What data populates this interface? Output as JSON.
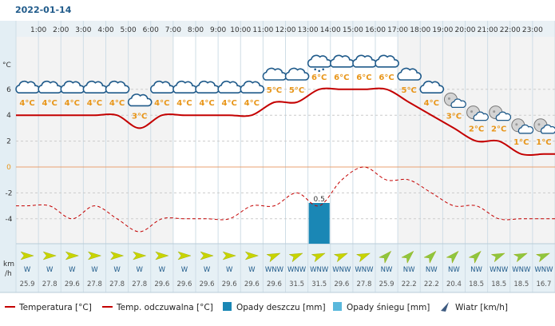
{
  "date": "2022-01-14",
  "units": {
    "temp": "°C",
    "wind_line1": "km",
    "wind_line2": "/h"
  },
  "legend": [
    {
      "label": "Temperatura [°C]",
      "color": "#c40000",
      "style": "solid"
    },
    {
      "label": "Temp. odczuwalna [°C]",
      "color": "#c40000",
      "style": "dashed"
    },
    {
      "label": "Opady deszczu [mm]",
      "color": "#1a87b5",
      "style": "box"
    },
    {
      "label": "Opady śniegu [mm]",
      "color": "#5ab8dc",
      "style": "box"
    },
    {
      "label": "Wiatr [km/h]",
      "color": "#3d5a80",
      "style": "arrow"
    }
  ],
  "colors": {
    "temp_line": "#c40000",
    "zero_line": "#e8a070",
    "temp_label": "#e8961a",
    "rain_bar": "#1a87b5",
    "wind_arrow_strong": "#c8d400",
    "wind_arrow_light": "#8ec63f"
  },
  "chart_data": {
    "type": "line",
    "y_unit": "°C",
    "y_ticks": [
      6,
      4,
      2,
      0,
      -2,
      -4
    ],
    "ylim": [
      -5.8,
      8.6
    ],
    "hours": [
      "1:00",
      "2:00",
      "3:00",
      "4:00",
      "5:00",
      "6:00",
      "7:00",
      "8:00",
      "9:00",
      "10:00",
      "11:00",
      "12:00",
      "13:00",
      "14:00",
      "15:00",
      "16:00",
      "17:00",
      "18:00",
      "19:00",
      "20:00",
      "21:00",
      "22:00",
      "23:00",
      ""
    ],
    "temperature": [
      4,
      4,
      4,
      4,
      4,
      3,
      4,
      4,
      4,
      4,
      4,
      5,
      5,
      6,
      6,
      6,
      6,
      5,
      4,
      3,
      2,
      2,
      1,
      1
    ],
    "temperature_labels": [
      "4°C",
      "4°C",
      "4°C",
      "4°C",
      "4°C",
      "3°C",
      "4°C",
      "4°C",
      "4°C",
      "4°C",
      "4°C",
      "5°C",
      "5°C",
      "6°C",
      "6°C",
      "6°C",
      "6°C",
      "5°C",
      "4°C",
      "3°C",
      "2°C",
      "2°C",
      "1°C",
      "1°C"
    ],
    "feels_like": [
      -3,
      -3,
      -4,
      -3,
      -4,
      -5,
      -4,
      -4,
      -4,
      -4,
      -3,
      -3,
      -2,
      -3,
      -1,
      0,
      -1,
      -1,
      -2,
      -3,
      -3,
      -4,
      -4,
      -4
    ],
    "rain_mm": [
      0,
      0,
      0,
      0,
      0,
      0,
      0,
      0,
      0,
      0,
      0,
      0,
      0,
      0.5,
      0,
      0,
      0,
      0,
      0,
      0,
      0,
      0,
      0,
      0
    ],
    "rain_labels": [
      "",
      "",
      "",
      "",
      "",
      "",
      "",
      "",
      "",
      "",
      "",
      "",
      "",
      "0.5",
      "",
      "",
      "",
      "",
      "",
      "",
      "",
      "",
      "",
      ""
    ],
    "icons": [
      "cloud-icon",
      "cloud-icon",
      "cloud-icon",
      "cloud-icon",
      "cloud-icon",
      "cloud-icon",
      "cloud-icon",
      "cloud-icon",
      "cloud-icon",
      "cloud-icon",
      "cloud-icon",
      "cloud-icon",
      "cloud-icon",
      "rain-cloud-icon",
      "cloud-icon",
      "cloud-icon",
      "cloud-icon",
      "cloud-icon",
      "cloud-icon",
      "moon-cloud-icon",
      "moon-cloud-icon",
      "moon-cloud-icon",
      "moon-cloud-icon",
      "moon-cloud-icon"
    ],
    "wind_dir": [
      "W",
      "W",
      "W",
      "W",
      "W",
      "W",
      "W",
      "W",
      "W",
      "W",
      "W",
      "WNW",
      "WNW",
      "WNW",
      "WNW",
      "WNW",
      "NW",
      "NW",
      "NW",
      "NW",
      "NW",
      "WNW",
      "WNW",
      "WNW"
    ],
    "wind_speed": [
      "25.9",
      "27.8",
      "29.6",
      "27.8",
      "27.8",
      "27.8",
      "29.6",
      "29.6",
      "29.6",
      "29.6",
      "29.6",
      "29.6",
      "31.5",
      "31.5",
      "29.6",
      "27.8",
      "25.9",
      "22.2",
      "22.2",
      "20.4",
      "18.5",
      "18.5",
      "18.5",
      "16.7"
    ],
    "wind_strength": [
      "strong",
      "strong",
      "strong",
      "strong",
      "strong",
      "strong",
      "strong",
      "strong",
      "strong",
      "strong",
      "strong",
      "strong",
      "strong",
      "strong",
      "strong",
      "strong",
      "light",
      "light",
      "light",
      "light",
      "light",
      "light",
      "light",
      "light"
    ]
  }
}
